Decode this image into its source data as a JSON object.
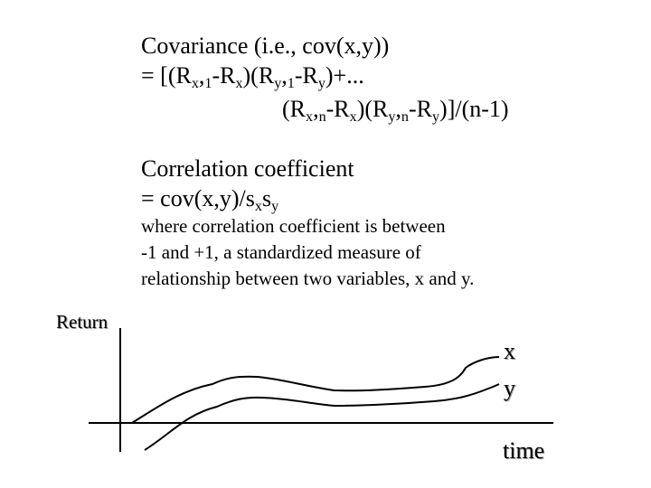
{
  "covariance": {
    "line1": "Covariance (i.e., cov(x,y))",
    "line2": {
      "p0": "= [(R",
      "s1": "x",
      "p1": ",",
      "s2": "1",
      "p2": "-R",
      "s3": "x",
      "p3": ")(R",
      "s4": "y",
      "p4": ",",
      "s5": "1",
      "p5": "-R",
      "s6": "y",
      "p6": ")+..."
    },
    "line3": {
      "p0": "(R",
      "s1": "x",
      "p1": ",",
      "s2": "n",
      "p2": "-R",
      "s3": "x",
      "p3": ")(R",
      "s4": "y",
      "p4": ",",
      "s5": "n",
      "p5": "-R",
      "s6": "y",
      "p6": ")]/(n-1)"
    }
  },
  "correlation": {
    "heading": "Correlation coefficient",
    "formula": {
      "p0": "= cov(x,y)/s",
      "s1": "x",
      "p1": "s",
      "s2": "y"
    },
    "desc1": "where correlation coefficient is between",
    "desc2": "-1 and +1, a standardized measure of",
    "desc3": "relationship between two variables, x and y."
  },
  "figure": {
    "y_axis_label": "Return",
    "x_axis_label": "time",
    "series_x_label": "x",
    "series_y_label": "y"
  }
}
